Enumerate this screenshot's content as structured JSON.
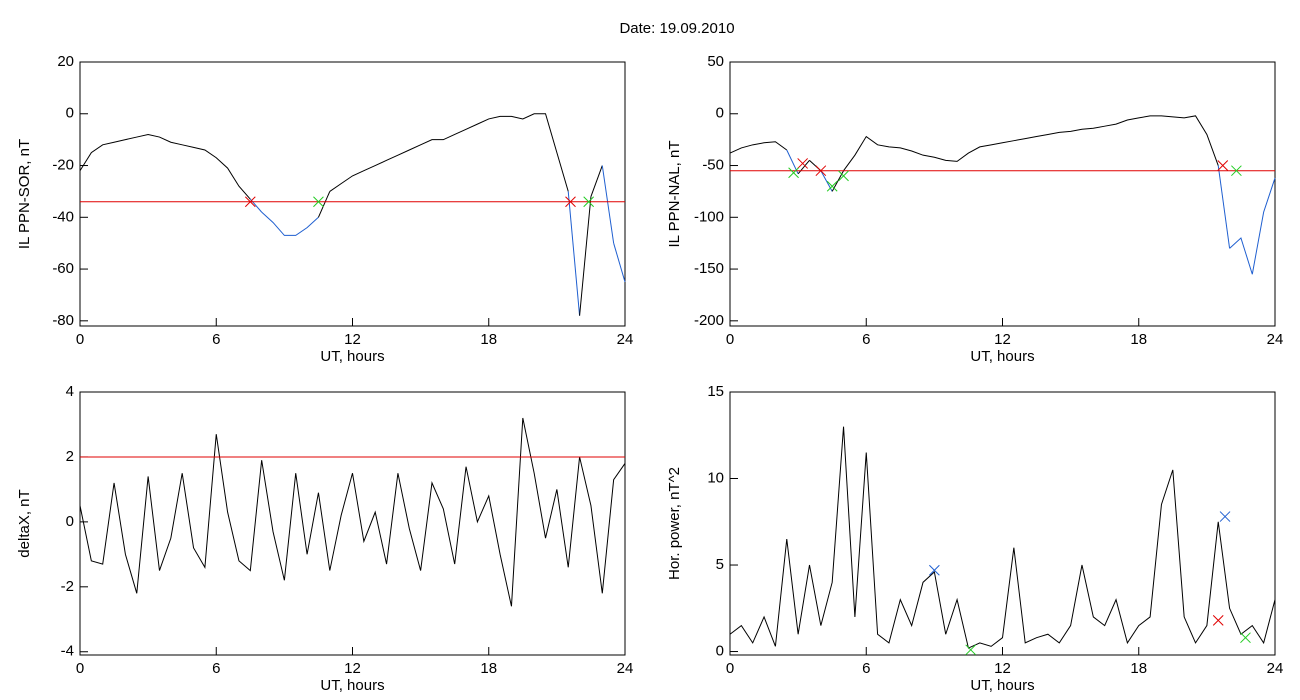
{
  "title": "Date:  19.09.2010",
  "chart_data": [
    {
      "type": "line",
      "ylabel": "IL PPN-SOR, nT",
      "xlabel": "UT, hours",
      "color": "#000000",
      "below_color": "#1f5fd0",
      "xlim": [
        0,
        24
      ],
      "xticks": [
        0,
        6,
        12,
        18,
        24
      ],
      "ylim": [
        -82,
        20
      ],
      "yticks": [
        20,
        0,
        -20,
        -40,
        -60,
        -80
      ],
      "x": [
        0,
        0.5,
        1,
        1.5,
        2,
        2.5,
        3,
        3.5,
        4,
        4.5,
        5,
        5.5,
        6,
        6.5,
        7,
        7.5,
        8,
        8.5,
        9,
        9.5,
        10,
        10.5,
        11,
        11.5,
        12,
        12.5,
        13,
        13.5,
        14,
        14.5,
        15,
        15.5,
        16,
        16.5,
        17,
        17.5,
        18,
        18.5,
        19,
        19.5,
        20,
        20.5,
        21,
        21.5,
        22,
        22.5,
        23,
        23.5,
        24
      ],
      "values": [
        -22,
        -15,
        -12,
        -11,
        -10,
        -9,
        -8,
        -9,
        -11,
        -12,
        -13,
        -14,
        -17,
        -21,
        -28,
        -33,
        -38,
        -42,
        -47,
        -47,
        -44,
        -40,
        -30,
        -27,
        -24,
        -22,
        -20,
        -18,
        -16,
        -14,
        -12,
        -10,
        -10,
        -8,
        -6,
        -4,
        -2,
        -1,
        -1,
        -2,
        0,
        0,
        -15,
        -30,
        -78,
        -32,
        -20,
        -50,
        -65
      ],
      "hline": {
        "value": -34,
        "color": "#e00000"
      },
      "markers": [
        {
          "x": 7.5,
          "y": -34,
          "color": "#e00000"
        },
        {
          "x": 21.6,
          "y": -34,
          "color": "#e00000"
        },
        {
          "x": 10.5,
          "y": -34,
          "color": "#22cc22"
        },
        {
          "x": 22.4,
          "y": -34,
          "color": "#22cc22"
        }
      ]
    },
    {
      "type": "line",
      "ylabel": "IL PPN-NAL, nT",
      "xlabel": "UT, hours",
      "color": "#000000",
      "below_color": "#1f5fd0",
      "xlim": [
        0,
        24
      ],
      "xticks": [
        0,
        6,
        12,
        18,
        24
      ],
      "ylim": [
        -205,
        50
      ],
      "yticks": [
        50,
        0,
        -50,
        -100,
        -150,
        -200
      ],
      "x": [
        0,
        0.5,
        1,
        1.5,
        2,
        2.5,
        3,
        3.5,
        4,
        4.5,
        5,
        5.5,
        6,
        6.5,
        7,
        7.5,
        8,
        8.5,
        9,
        9.5,
        10,
        10.5,
        11,
        11.5,
        12,
        12.5,
        13,
        13.5,
        14,
        14.5,
        15,
        15.5,
        16,
        16.5,
        17,
        17.5,
        18,
        18.5,
        19,
        19.5,
        20,
        20.5,
        21,
        21.5,
        22,
        22.5,
        23,
        23.5,
        24
      ],
      "values": [
        -38,
        -33,
        -30,
        -28,
        -27,
        -35,
        -58,
        -45,
        -55,
        -75,
        -55,
        -40,
        -22,
        -30,
        -32,
        -33,
        -36,
        -40,
        -42,
        -45,
        -46,
        -38,
        -32,
        -30,
        -28,
        -26,
        -24,
        -22,
        -20,
        -18,
        -17,
        -15,
        -14,
        -12,
        -10,
        -6,
        -4,
        -2,
        -2,
        -3,
        -4,
        -2,
        -20,
        -50,
        -130,
        -120,
        -155,
        -95,
        -62
      ],
      "hline": {
        "value": -55,
        "color": "#e00000"
      },
      "markers": [
        {
          "x": 3.2,
          "y": -48,
          "color": "#e00000"
        },
        {
          "x": 4.0,
          "y": -55,
          "color": "#e00000"
        },
        {
          "x": 21.7,
          "y": -50,
          "color": "#e00000"
        },
        {
          "x": 2.8,
          "y": -57,
          "color": "#22cc22"
        },
        {
          "x": 4.5,
          "y": -70,
          "color": "#22cc22"
        },
        {
          "x": 5.0,
          "y": -60,
          "color": "#22cc22"
        },
        {
          "x": 22.3,
          "y": -55,
          "color": "#22cc22"
        }
      ]
    },
    {
      "type": "line",
      "ylabel": "deltaX, nT",
      "xlabel": "UT, hours",
      "color": "#000000",
      "xlim": [
        0,
        24
      ],
      "xticks": [
        0,
        6,
        12,
        18,
        24
      ],
      "ylim": [
        -4.1,
        4
      ],
      "yticks": [
        4,
        2,
        0,
        -2,
        -4
      ],
      "x": [
        0,
        0.5,
        1,
        1.5,
        2,
        2.5,
        3,
        3.5,
        4,
        4.5,
        5,
        5.5,
        6,
        6.5,
        7,
        7.5,
        8,
        8.5,
        9,
        9.5,
        10,
        10.5,
        11,
        11.5,
        12,
        12.5,
        13,
        13.5,
        14,
        14.5,
        15,
        15.5,
        16,
        16.5,
        17,
        17.5,
        18,
        18.5,
        19,
        19.5,
        20,
        20.5,
        21,
        21.5,
        22,
        22.5,
        23,
        23.5,
        24
      ],
      "values": [
        0.5,
        -1.2,
        -1.3,
        1.2,
        -1,
        -2.2,
        1.4,
        -1.5,
        -0.5,
        1.5,
        -0.8,
        -1.4,
        2.7,
        0.3,
        -1.2,
        -1.5,
        1.9,
        -0.3,
        -1.8,
        1.5,
        -1,
        0.9,
        -1.5,
        0.2,
        1.5,
        -0.6,
        0.3,
        -1.3,
        1.5,
        -0.2,
        -1.5,
        1.2,
        0.4,
        -1.3,
        1.7,
        0,
        0.8,
        -1,
        -2.6,
        3.2,
        1.5,
        -0.5,
        1,
        -1.4,
        2.0,
        0.5,
        -2.2,
        1.3,
        1.8
      ],
      "hline": {
        "value": 2,
        "color": "#e00000"
      },
      "markers": []
    },
    {
      "type": "line",
      "ylabel": "Hor. power, nT^2",
      "xlabel": "UT, hours",
      "color": "#000000",
      "xlim": [
        0,
        24
      ],
      "xticks": [
        0,
        6,
        12,
        18,
        24
      ],
      "ylim": [
        -0.2,
        15
      ],
      "yticks": [
        0,
        5,
        10,
        15
      ],
      "x": [
        0,
        0.5,
        1,
        1.5,
        2,
        2.5,
        3,
        3.5,
        4,
        4.5,
        5,
        5.5,
        6,
        6.5,
        7,
        7.5,
        8,
        8.5,
        9,
        9.5,
        10,
        10.5,
        11,
        11.5,
        12,
        12.5,
        13,
        13.5,
        14,
        14.5,
        15,
        15.5,
        16,
        16.5,
        17,
        17.5,
        18,
        18.5,
        19,
        19.5,
        20,
        20.5,
        21,
        21.5,
        22,
        22.5,
        23,
        23.5,
        24
      ],
      "values": [
        1,
        1.5,
        0.5,
        2,
        0.3,
        6.5,
        1,
        5,
        1.5,
        4,
        13,
        2,
        11.5,
        1,
        0.5,
        3,
        1.5,
        4,
        4.6,
        1,
        3,
        0.2,
        0.5,
        0.3,
        0.8,
        6,
        0.5,
        0.8,
        1,
        0.5,
        1.5,
        5,
        2,
        1.5,
        3,
        0.5,
        1.5,
        2,
        8.5,
        10.5,
        2,
        0.5,
        1.5,
        7.5,
        2.5,
        1,
        1.5,
        0.5,
        3
      ],
      "markers": [
        {
          "x": 9,
          "y": 4.7,
          "color": "#1f5fd0"
        },
        {
          "x": 21.8,
          "y": 7.8,
          "color": "#1f5fd0"
        },
        {
          "x": 21.5,
          "y": 1.8,
          "color": "#e00000"
        },
        {
          "x": 10.6,
          "y": 0.1,
          "color": "#22cc22"
        },
        {
          "x": 22.7,
          "y": 0.8,
          "color": "#22cc22"
        }
      ]
    }
  ]
}
